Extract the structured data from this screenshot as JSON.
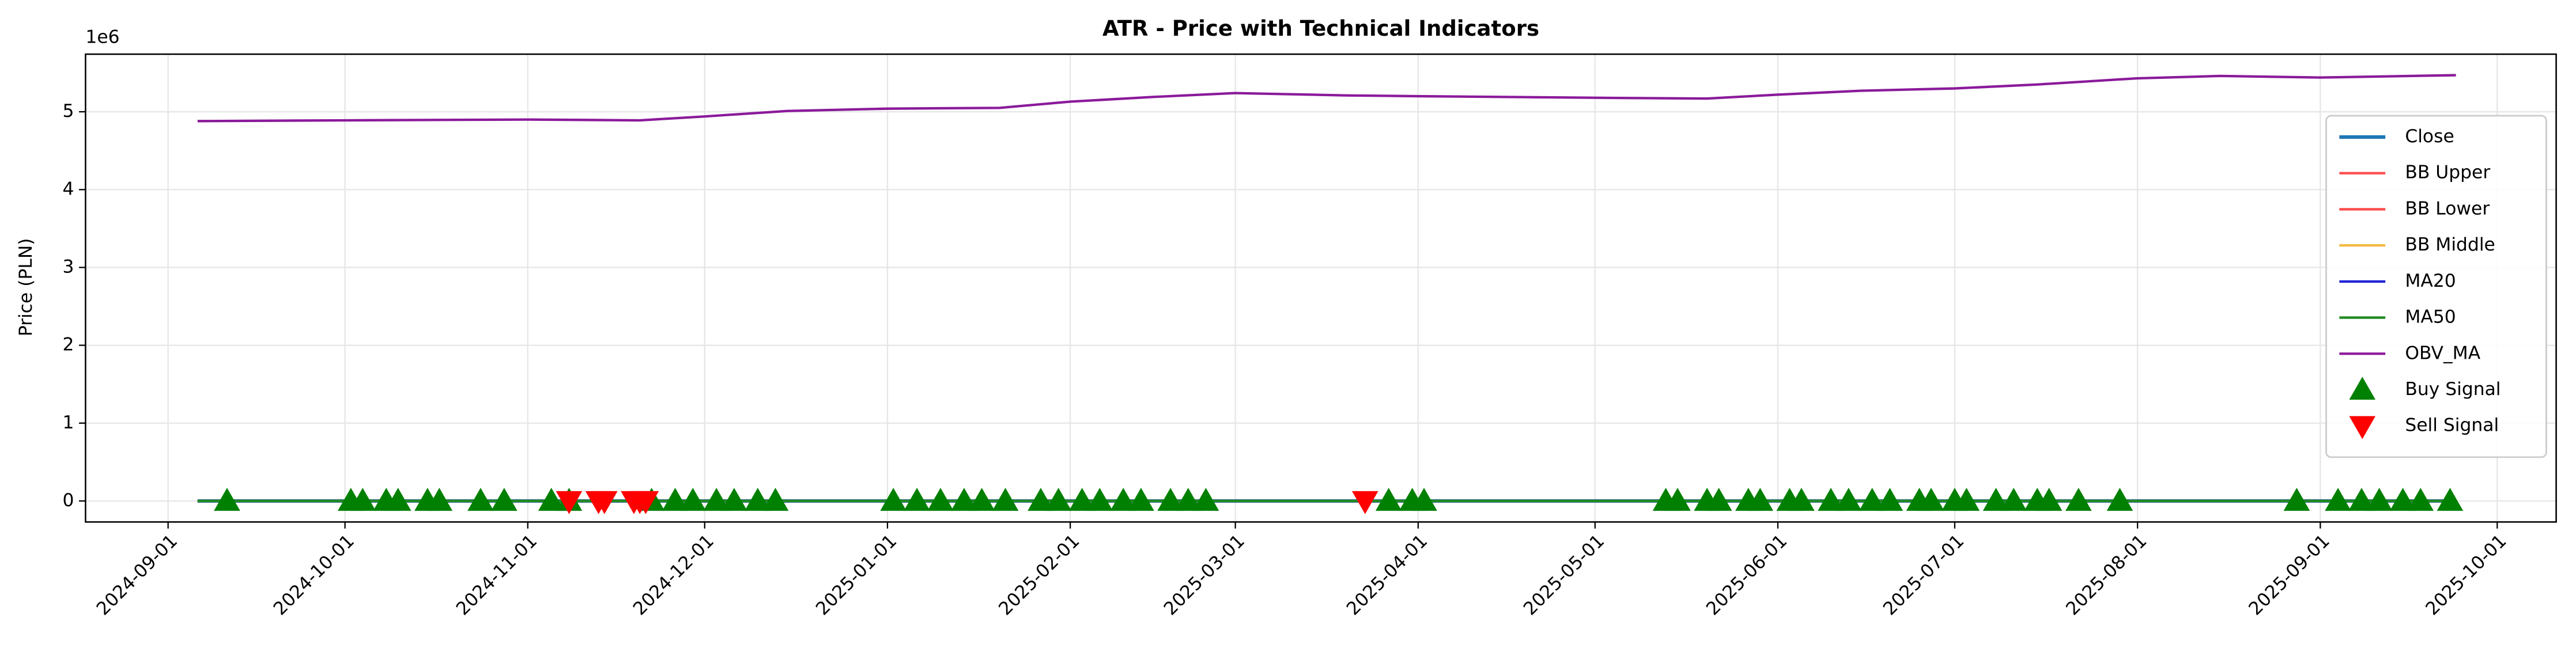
{
  "chart_data": {
    "type": "line",
    "title": "ATR - Price with Technical Indicators",
    "ylabel": "Price (PLN)",
    "y_offset_label": "1e6",
    "x": [
      "2024-09-06",
      "2024-10-01",
      "2024-11-01",
      "2024-11-20",
      "2024-12-01",
      "2024-12-15",
      "2025-01-01",
      "2025-01-20",
      "2025-02-01",
      "2025-02-15",
      "2025-03-01",
      "2025-03-20",
      "2025-04-01",
      "2025-05-01",
      "2025-05-20",
      "2025-06-01",
      "2025-06-15",
      "2025-07-01",
      "2025-07-15",
      "2025-08-01",
      "2025-08-15",
      "2025-09-01",
      "2025-09-24"
    ],
    "series": [
      {
        "name": "Close",
        "color": "#1f77b4",
        "values": [
          0,
          0,
          0,
          0,
          0,
          0,
          0,
          0,
          0,
          0,
          0,
          0,
          0,
          0,
          0,
          0,
          0,
          0,
          0,
          0,
          0,
          0,
          0
        ]
      },
      {
        "name": "BB Upper",
        "color": "#ff4d4d",
        "values": [
          0,
          0,
          0,
          0,
          0,
          0,
          0,
          0,
          0,
          0,
          0,
          0,
          0,
          0,
          0,
          0,
          0,
          0,
          0,
          0,
          0,
          0,
          0
        ]
      },
      {
        "name": "BB Lower",
        "color": "#ff4d4d",
        "values": [
          0,
          0,
          0,
          0,
          0,
          0,
          0,
          0,
          0,
          0,
          0,
          0,
          0,
          0,
          0,
          0,
          0,
          0,
          0,
          0,
          0,
          0,
          0
        ]
      },
      {
        "name": "BB Middle",
        "color": "#f5b942",
        "values": [
          0,
          0,
          0,
          0,
          0,
          0,
          0,
          0,
          0,
          0,
          0,
          0,
          0,
          0,
          0,
          0,
          0,
          0,
          0,
          0,
          0,
          0,
          0
        ]
      },
      {
        "name": "MA20",
        "color": "#2323d9",
        "values": [
          0,
          0,
          0,
          0,
          0,
          0,
          0,
          0,
          0,
          0,
          0,
          0,
          0,
          0,
          0,
          0,
          0,
          0,
          0,
          0,
          0,
          0,
          0
        ]
      },
      {
        "name": "MA50",
        "color": "#228b22",
        "values": [
          0,
          0,
          0,
          0,
          0,
          0,
          0,
          0,
          0,
          0,
          0,
          0,
          0,
          0,
          0,
          0,
          0,
          0,
          0,
          0,
          0,
          0,
          0
        ]
      },
      {
        "name": "OBV_MA",
        "color": "#8b1a9b",
        "values": [
          4.88,
          4.89,
          4.9,
          4.89,
          4.94,
          5.01,
          5.04,
          5.05,
          5.13,
          5.19,
          5.24,
          5.21,
          5.2,
          5.18,
          5.17,
          5.22,
          5.27,
          5.3,
          5.35,
          5.43,
          5.46,
          5.44,
          5.47
        ]
      }
    ],
    "signals": [
      {
        "name": "Buy Signal",
        "color": "#008000",
        "marker": "up",
        "x": [
          "2024-09-11",
          "2024-10-02",
          "2024-10-04",
          "2024-10-08",
          "2024-10-10",
          "2024-10-15",
          "2024-10-17",
          "2024-10-24",
          "2024-10-28",
          "2024-11-05",
          "2024-11-08",
          "2024-11-22",
          "2024-11-26",
          "2024-11-29",
          "2024-12-03",
          "2024-12-06",
          "2024-12-10",
          "2024-12-13",
          "2025-01-02",
          "2025-01-06",
          "2025-01-10",
          "2025-01-14",
          "2025-01-17",
          "2025-01-21",
          "2025-01-27",
          "2025-01-30",
          "2025-02-03",
          "2025-02-06",
          "2025-02-10",
          "2025-02-13",
          "2025-02-18",
          "2025-02-21",
          "2025-02-24",
          "2025-03-27",
          "2025-03-31",
          "2025-04-02",
          "2025-05-13",
          "2025-05-15",
          "2025-05-20",
          "2025-05-22",
          "2025-05-27",
          "2025-05-29",
          "2025-06-03",
          "2025-06-05",
          "2025-06-10",
          "2025-06-13",
          "2025-06-17",
          "2025-06-20",
          "2025-06-25",
          "2025-06-27",
          "2025-07-01",
          "2025-07-03",
          "2025-07-08",
          "2025-07-11",
          "2025-07-15",
          "2025-07-17",
          "2025-07-22",
          "2025-07-29",
          "2025-08-28",
          "2025-09-04",
          "2025-09-08",
          "2025-09-11",
          "2025-09-15",
          "2025-09-18",
          "2025-09-23"
        ],
        "values": [
          0,
          0,
          0,
          0,
          0,
          0,
          0,
          0,
          0,
          0,
          0,
          0,
          0,
          0,
          0,
          0,
          0,
          0,
          0,
          0,
          0,
          0,
          0,
          0,
          0,
          0,
          0,
          0,
          0,
          0,
          0,
          0,
          0,
          0,
          0,
          0,
          0,
          0,
          0,
          0,
          0,
          0,
          0,
          0,
          0,
          0,
          0,
          0,
          0,
          0,
          0,
          0,
          0,
          0,
          0,
          0,
          0,
          0,
          0,
          0,
          0,
          0,
          0,
          0,
          0
        ]
      },
      {
        "name": "Sell Signal",
        "color": "#ff0000",
        "marker": "down",
        "x": [
          "2024-11-08",
          "2024-11-13",
          "2024-11-14",
          "2024-11-19",
          "2024-11-20",
          "2024-11-21",
          "2025-03-23"
        ],
        "values": [
          0,
          0,
          0,
          0,
          0,
          0,
          0
        ]
      }
    ],
    "xlim": [
      "2024-08-18",
      "2025-10-11"
    ],
    "xticks": [
      "2024-09-01",
      "2024-10-01",
      "2024-11-01",
      "2024-12-01",
      "2025-01-01",
      "2025-02-01",
      "2025-03-01",
      "2025-04-01",
      "2025-05-01",
      "2025-06-01",
      "2025-07-01",
      "2025-08-01",
      "2025-09-01",
      "2025-10-01"
    ],
    "ylim": [
      -0.27,
      5.74
    ],
    "yticks": [
      0,
      1,
      2,
      3,
      4,
      5
    ],
    "grid": true,
    "legend": "center right"
  }
}
